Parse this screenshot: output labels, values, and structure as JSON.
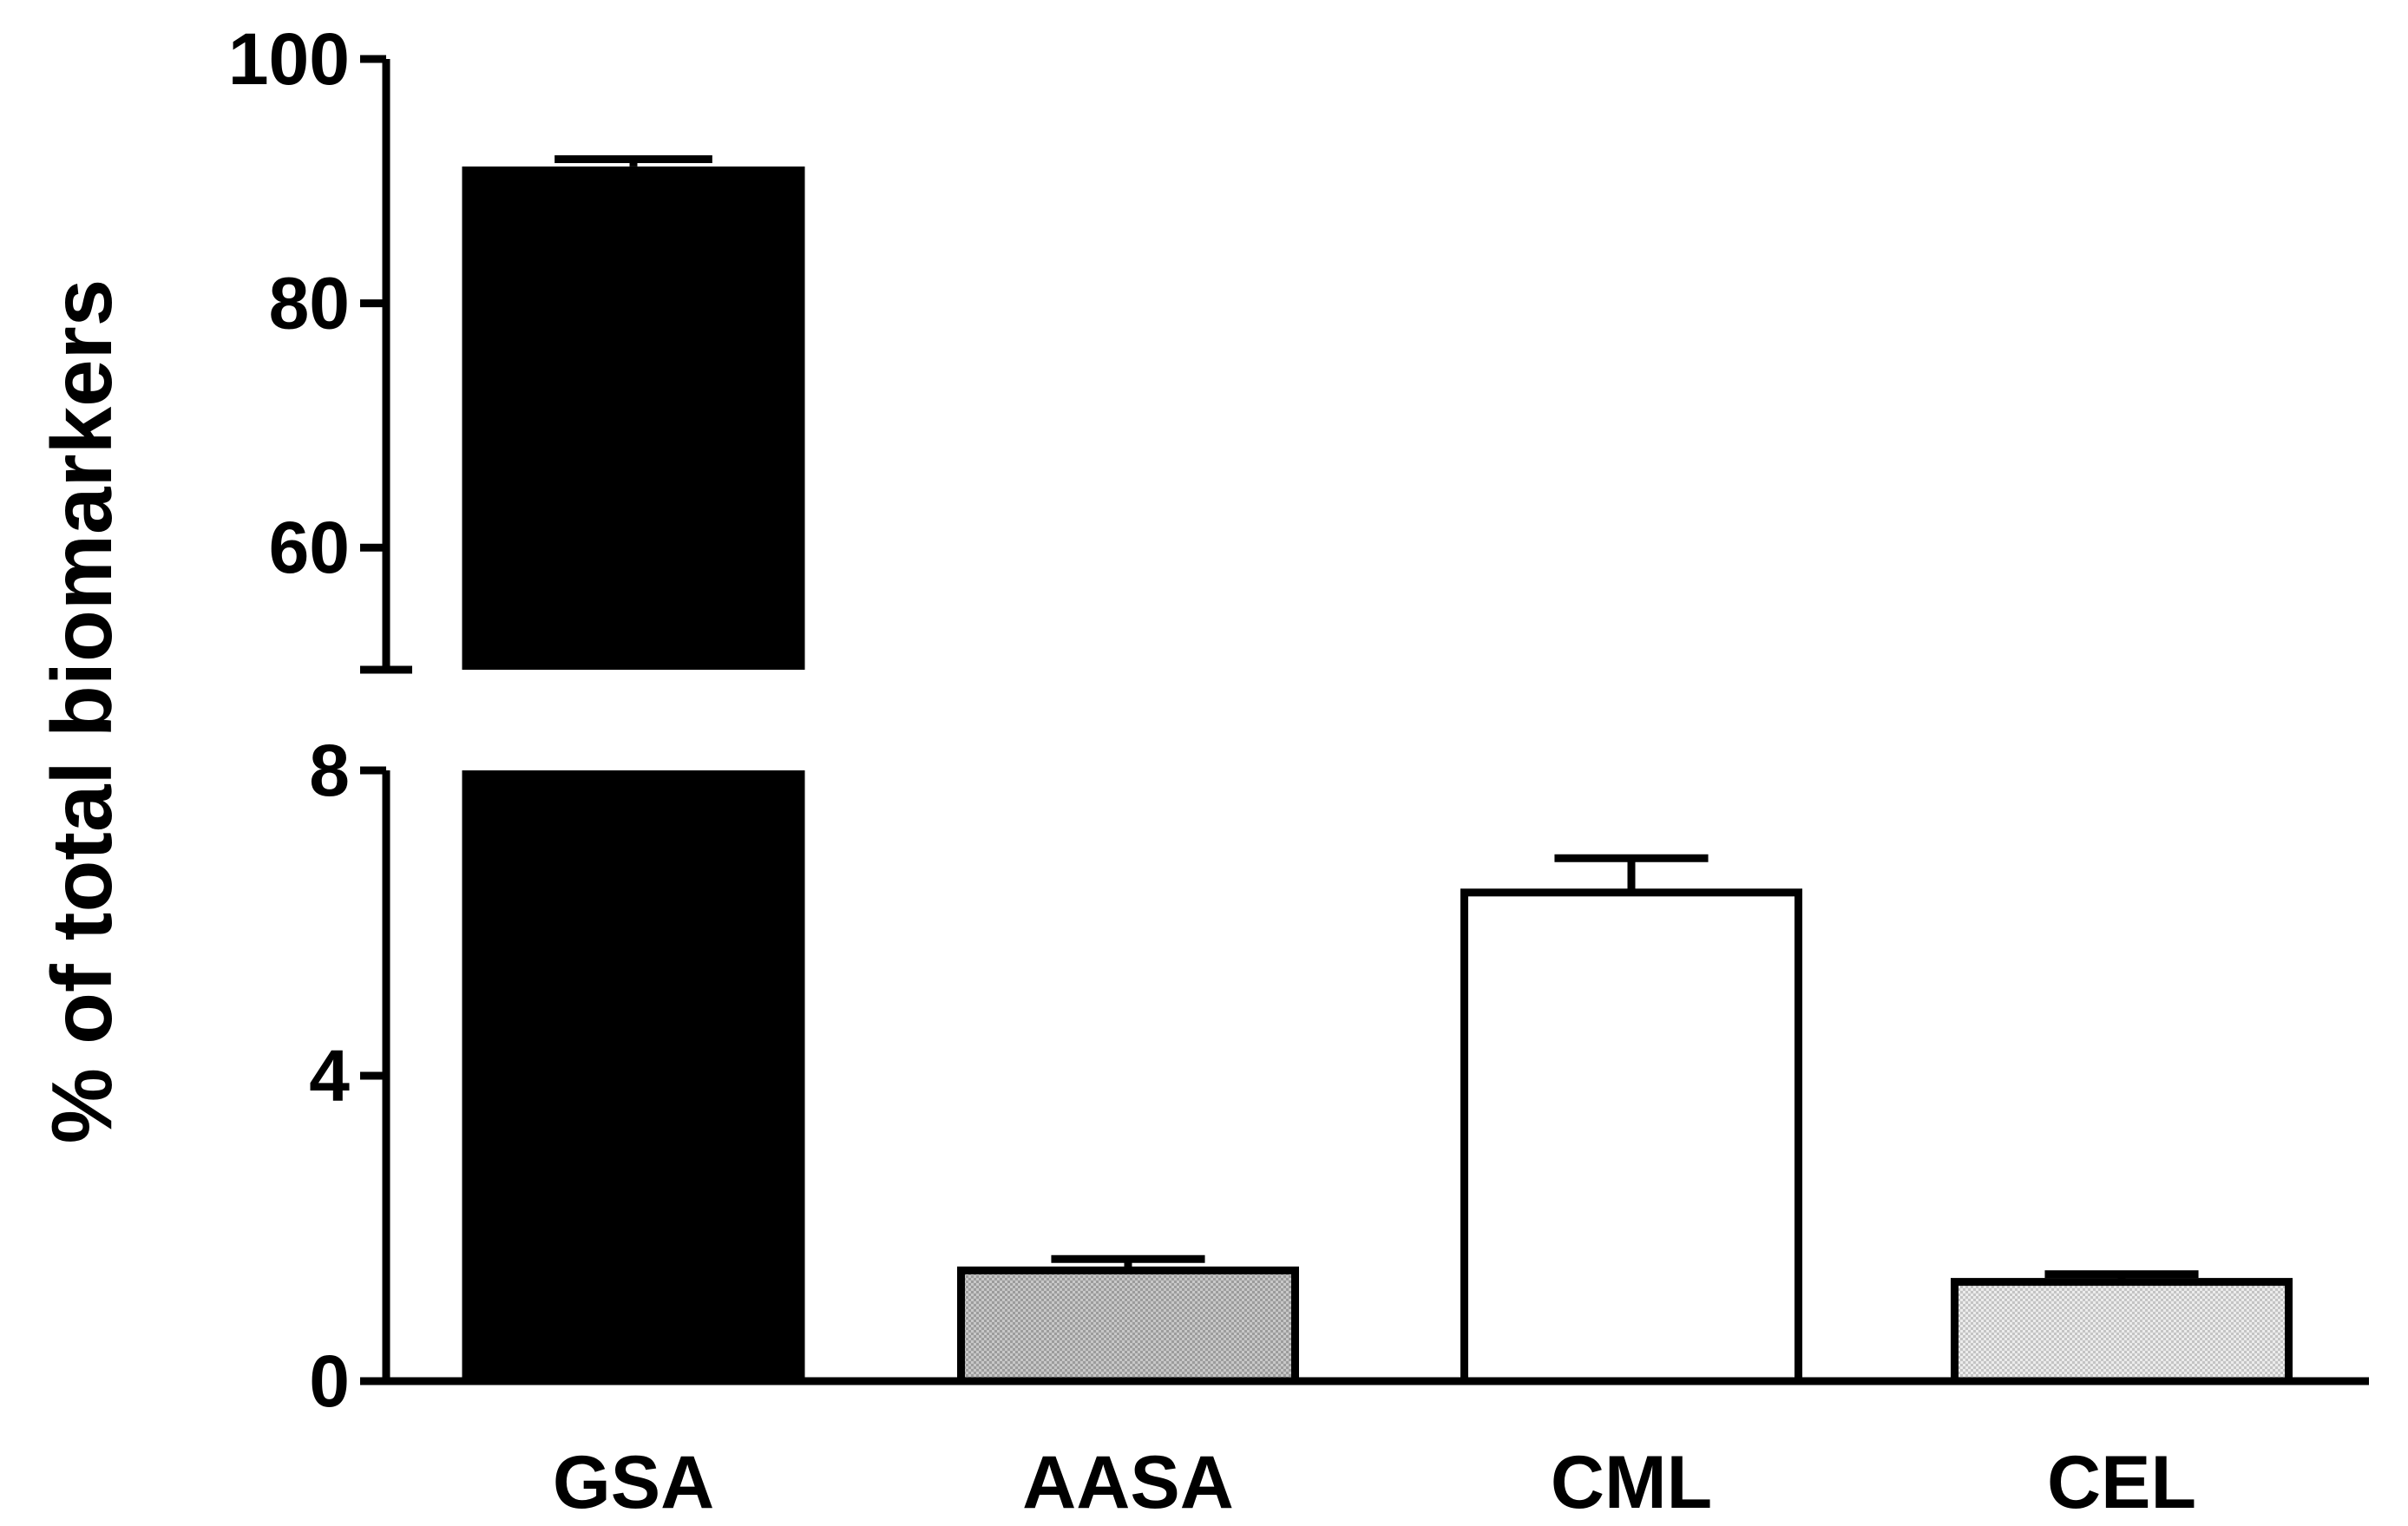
{
  "chart_data": {
    "type": "bar",
    "title": "",
    "xlabel": "",
    "ylabel": "% of total biomarkers",
    "categories": [
      "GSA",
      "AASA",
      "CML",
      "CEL"
    ],
    "values": [
      91.2,
      1.45,
      6.4,
      1.3
    ],
    "errors": [
      0.6,
      0.15,
      0.45,
      0.1
    ],
    "fills": [
      "#000000",
      "#b4b4b4",
      "#ffffff",
      "#d9d9d9"
    ],
    "fill_patterns": [
      "solid",
      "dotted-grey",
      "solid",
      "dotted-light"
    ],
    "y_axis_break": true,
    "y_segments": [
      {
        "range": [
          0,
          8
        ],
        "ticks": [
          0,
          4,
          8
        ],
        "tick_labels": [
          "0",
          "4",
          "8"
        ]
      },
      {
        "range": [
          50,
          100
        ],
        "ticks": [
          60,
          80,
          100
        ],
        "tick_labels": [
          "60",
          "80",
          "100"
        ]
      }
    ],
    "grid": false,
    "legend": "none"
  }
}
